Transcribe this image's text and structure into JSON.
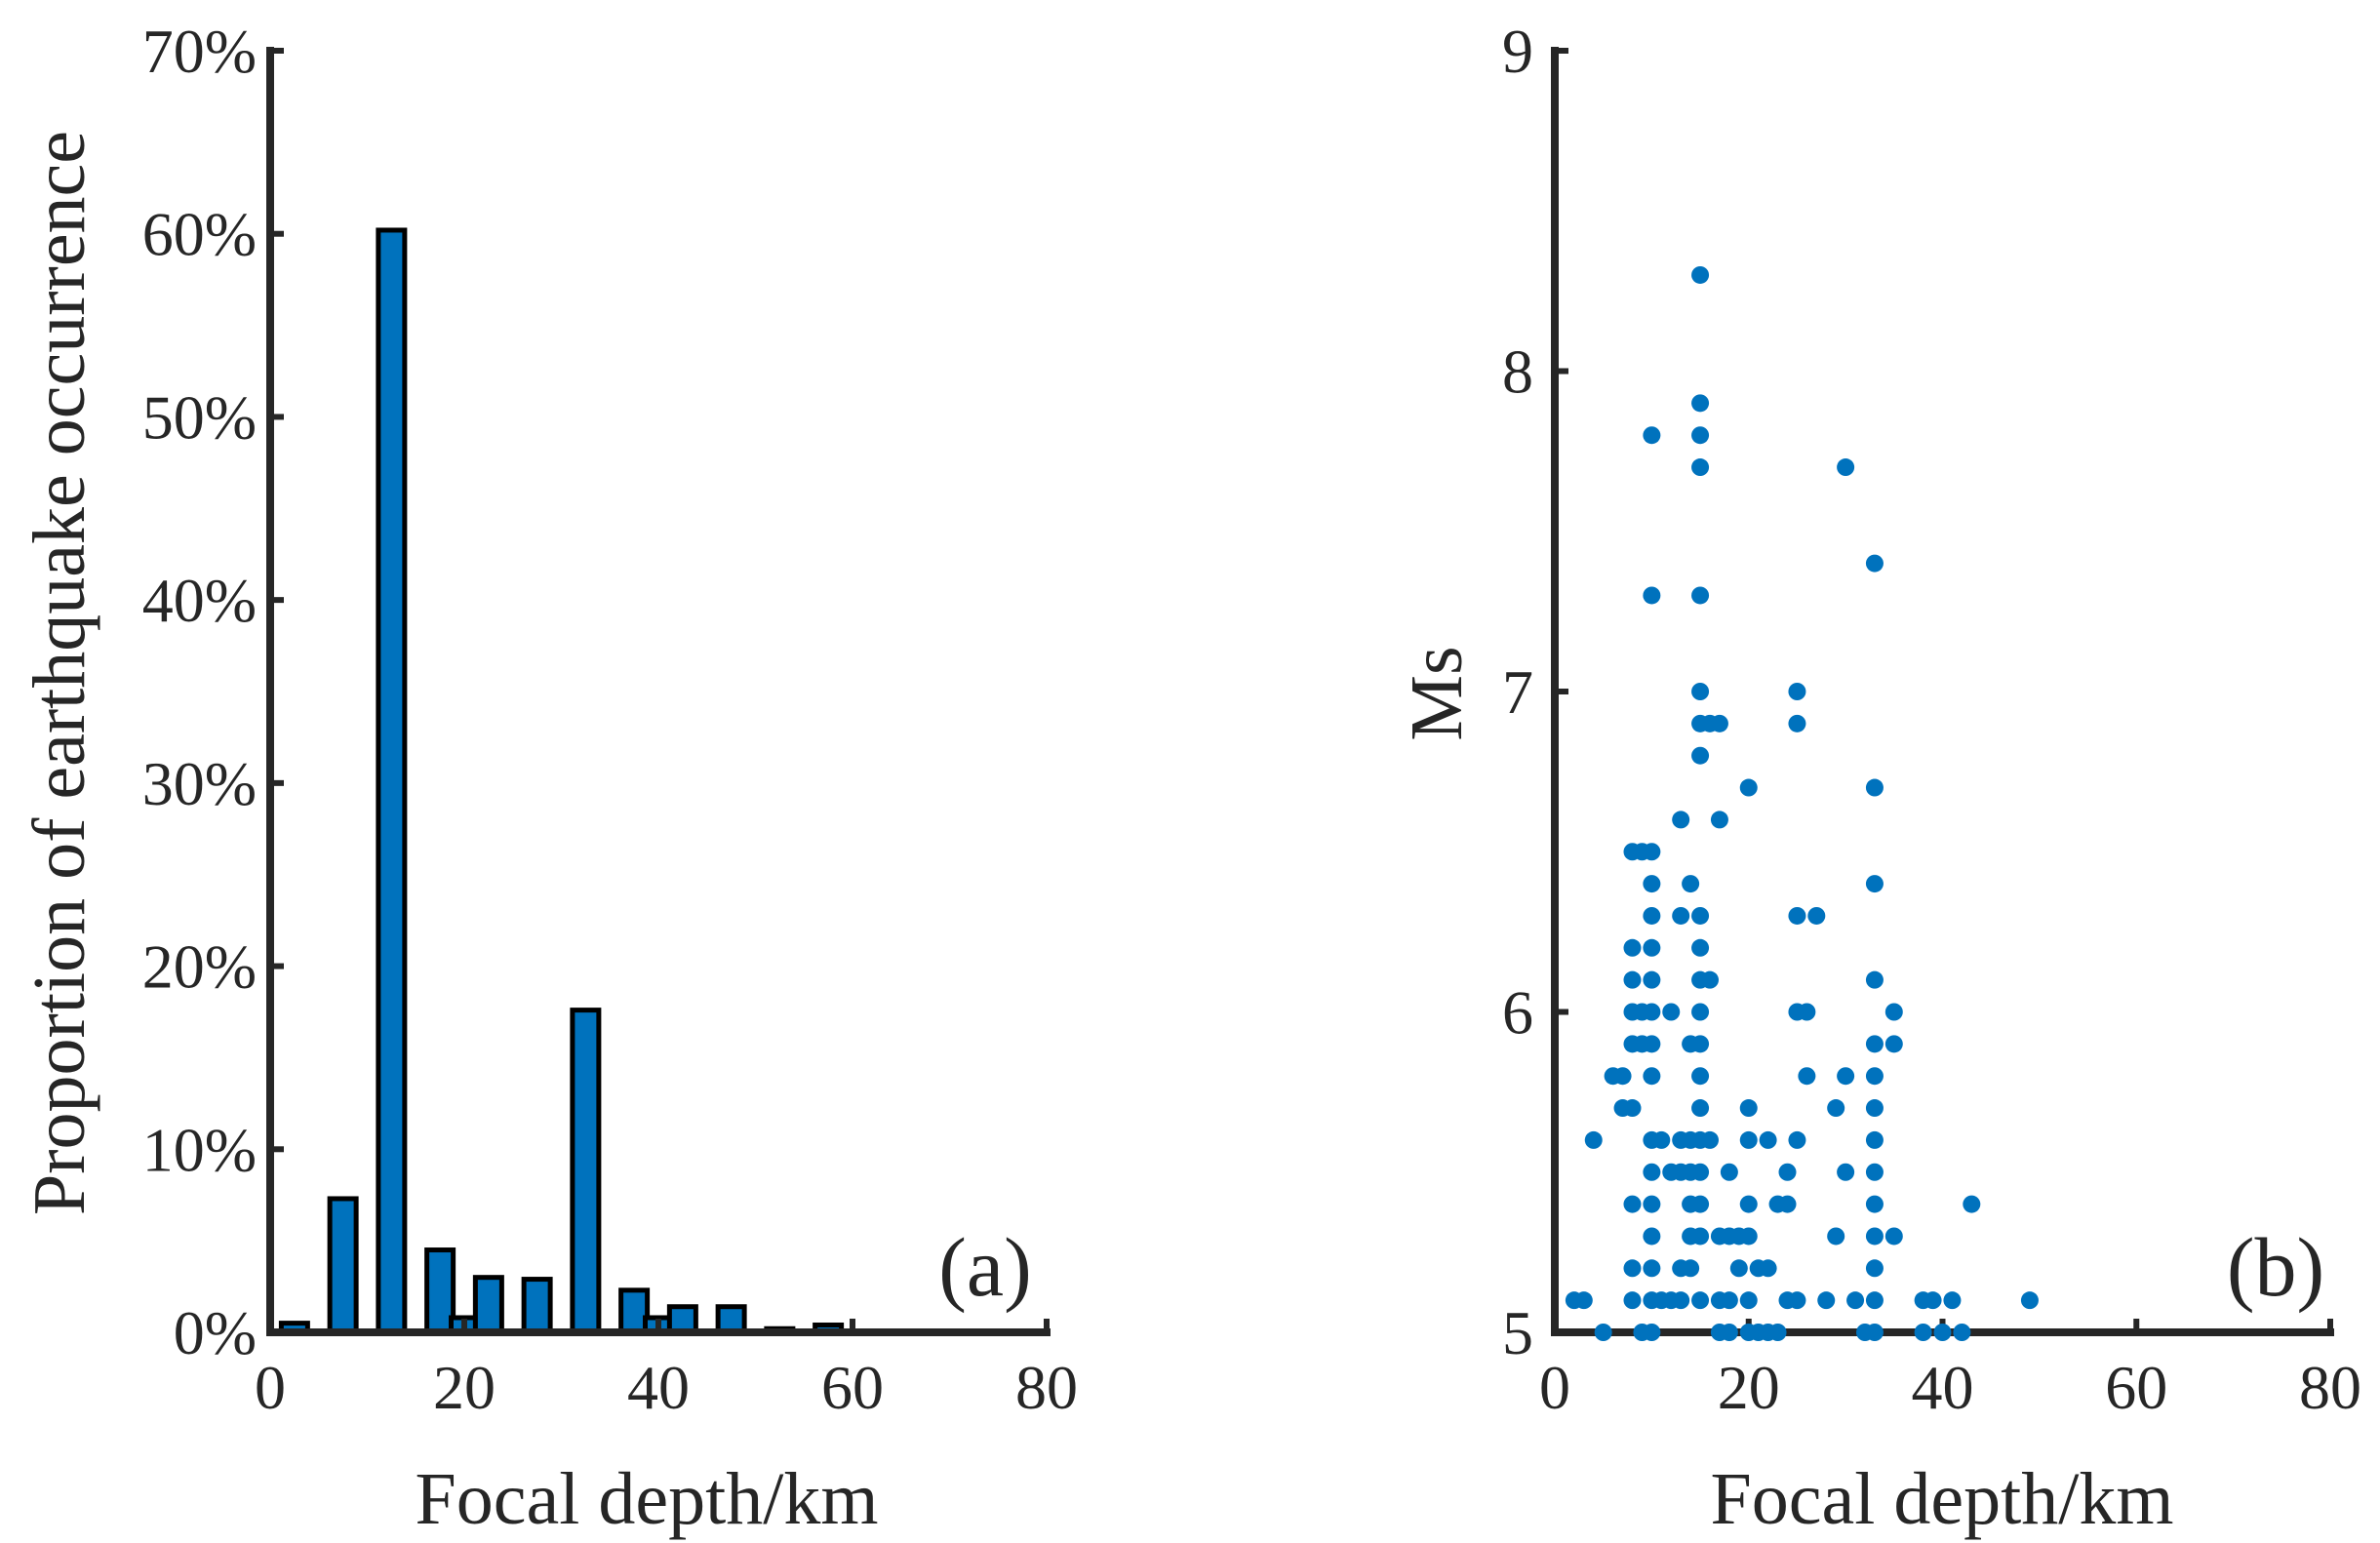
{
  "chart_data": [
    {
      "panel": "(a)",
      "type": "bar",
      "xlabel": "Focal depth/km",
      "ylabel": "Proportion of earthquake occurrence",
      "xlim": [
        0,
        80
      ],
      "ylim": [
        0,
        70
      ],
      "xticks": [
        "0",
        "20",
        "40",
        "60",
        "80"
      ],
      "yticks": [
        "0%",
        "10%",
        "20%",
        "30%",
        "40%",
        "50%",
        "60%",
        "70%"
      ],
      "categories": [
        2.5,
        7.5,
        12.5,
        17.5,
        20,
        22.5,
        27.5,
        32.5,
        37.5,
        40,
        42.5,
        47.5,
        52.5,
        57.5
      ],
      "values": [
        0.5,
        7.3,
        60.2,
        4.5,
        0.8,
        3.0,
        2.9,
        17.6,
        2.3,
        0.8,
        1.4,
        1.4,
        0.2,
        0.4
      ],
      "unit": "%"
    },
    {
      "panel": "(b)",
      "type": "scatter",
      "xlabel": "Focal depth/km",
      "ylabel": "Ms",
      "xlim": [
        0,
        80
      ],
      "ylim": [
        5,
        9
      ],
      "xticks": [
        "0",
        "20",
        "40",
        "60",
        "80"
      ],
      "yticks": [
        "5",
        "6",
        "7",
        "8",
        "9"
      ],
      "points": [
        [
          2,
          5.1
        ],
        [
          3,
          5.1
        ],
        [
          4,
          5.6
        ],
        [
          5,
          5.0
        ],
        [
          6,
          5.8
        ],
        [
          7,
          5.8
        ],
        [
          7,
          5.7
        ],
        [
          8,
          6.5
        ],
        [
          8,
          6.2
        ],
        [
          8,
          6.1
        ],
        [
          8,
          6.0
        ],
        [
          8,
          5.9
        ],
        [
          8,
          5.7
        ],
        [
          8,
          5.4
        ],
        [
          8,
          5.2
        ],
        [
          8,
          5.1
        ],
        [
          9,
          6.5
        ],
        [
          9,
          6.0
        ],
        [
          9,
          5.9
        ],
        [
          9,
          5.0
        ],
        [
          10,
          7.8
        ],
        [
          10,
          7.3
        ],
        [
          10,
          6.5
        ],
        [
          10,
          6.4
        ],
        [
          10,
          6.3
        ],
        [
          10,
          6.2
        ],
        [
          10,
          6.1
        ],
        [
          10,
          6.0
        ],
        [
          10,
          5.9
        ],
        [
          10,
          5.8
        ],
        [
          10,
          5.6
        ],
        [
          10,
          5.5
        ],
        [
          10,
          5.4
        ],
        [
          10,
          5.3
        ],
        [
          10,
          5.2
        ],
        [
          10,
          5.1
        ],
        [
          10,
          5.0
        ],
        [
          11,
          5.6
        ],
        [
          11,
          5.1
        ],
        [
          12,
          6.0
        ],
        [
          12,
          5.5
        ],
        [
          12,
          5.1
        ],
        [
          13,
          6.6
        ],
        [
          13,
          6.3
        ],
        [
          13,
          5.6
        ],
        [
          13,
          5.5
        ],
        [
          13,
          5.2
        ],
        [
          13,
          5.1
        ],
        [
          14,
          6.4
        ],
        [
          14,
          5.9
        ],
        [
          14,
          5.6
        ],
        [
          14,
          5.5
        ],
        [
          14,
          5.4
        ],
        [
          14,
          5.3
        ],
        [
          14,
          5.2
        ],
        [
          15,
          8.3
        ],
        [
          15,
          7.9
        ],
        [
          15,
          7.8
        ],
        [
          15,
          7.7
        ],
        [
          15,
          7.3
        ],
        [
          15,
          7.0
        ],
        [
          15,
          6.9
        ],
        [
          15,
          6.8
        ],
        [
          15,
          6.3
        ],
        [
          15,
          6.2
        ],
        [
          15,
          6.1
        ],
        [
          15,
          6.0
        ],
        [
          15,
          5.9
        ],
        [
          15,
          5.8
        ],
        [
          15,
          5.7
        ],
        [
          15,
          5.6
        ],
        [
          15,
          5.5
        ],
        [
          15,
          5.4
        ],
        [
          15,
          5.3
        ],
        [
          15,
          5.1
        ],
        [
          16,
          6.9
        ],
        [
          16,
          6.1
        ],
        [
          16,
          5.6
        ],
        [
          17,
          6.9
        ],
        [
          17,
          6.6
        ],
        [
          17,
          5.3
        ],
        [
          17,
          5.1
        ],
        [
          17,
          5.0
        ],
        [
          18,
          5.5
        ],
        [
          18,
          5.3
        ],
        [
          18,
          5.1
        ],
        [
          18,
          5.0
        ],
        [
          19,
          5.3
        ],
        [
          19,
          5.2
        ],
        [
          20,
          6.7
        ],
        [
          20,
          5.7
        ],
        [
          20,
          5.6
        ],
        [
          20,
          5.4
        ],
        [
          20,
          5.3
        ],
        [
          20,
          5.1
        ],
        [
          20,
          5.0
        ],
        [
          21,
          5.2
        ],
        [
          21,
          5.0
        ],
        [
          22,
          5.6
        ],
        [
          22,
          5.2
        ],
        [
          22,
          5.0
        ],
        [
          23,
          5.4
        ],
        [
          23,
          5.0
        ],
        [
          24,
          5.5
        ],
        [
          24,
          5.4
        ],
        [
          24,
          5.1
        ],
        [
          25,
          7.0
        ],
        [
          25,
          6.9
        ],
        [
          25,
          6.3
        ],
        [
          25,
          6.0
        ],
        [
          25,
          5.6
        ],
        [
          25,
          5.1
        ],
        [
          26,
          6.0
        ],
        [
          26,
          5.8
        ],
        [
          27,
          6.3
        ],
        [
          28,
          5.1
        ],
        [
          29,
          5.7
        ],
        [
          29,
          5.3
        ],
        [
          30,
          7.7
        ],
        [
          30,
          5.8
        ],
        [
          30,
          5.5
        ],
        [
          31,
          5.1
        ],
        [
          32,
          5.0
        ],
        [
          33,
          7.4
        ],
        [
          33,
          6.7
        ],
        [
          33,
          6.4
        ],
        [
          33,
          6.1
        ],
        [
          33,
          5.9
        ],
        [
          33,
          5.8
        ],
        [
          33,
          5.7
        ],
        [
          33,
          5.6
        ],
        [
          33,
          5.5
        ],
        [
          33,
          5.4
        ],
        [
          33,
          5.3
        ],
        [
          33,
          5.2
        ],
        [
          33,
          5.1
        ],
        [
          33,
          5.0
        ],
        [
          35,
          6.0
        ],
        [
          35,
          5.9
        ],
        [
          35,
          5.3
        ],
        [
          38,
          5.1
        ],
        [
          38,
          5.0
        ],
        [
          39,
          5.1
        ],
        [
          40,
          5.0
        ],
        [
          41,
          5.1
        ],
        [
          42,
          5.0
        ],
        [
          43,
          5.4
        ],
        [
          49,
          5.1
        ]
      ]
    }
  ]
}
